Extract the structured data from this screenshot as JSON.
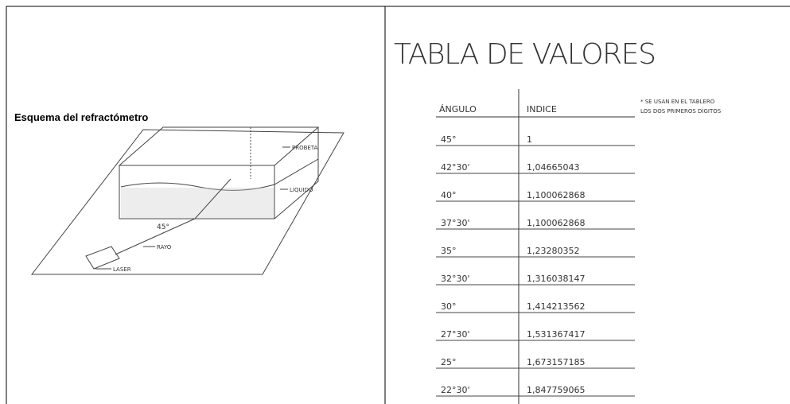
{
  "left": {
    "title": "Esquema del refractómetro",
    "diagram": {
      "probeta": "PROBETA",
      "liquido": "LIQUIDO",
      "angle": "45°",
      "rayo": "RAYO",
      "laser": "LASER"
    }
  },
  "right": {
    "title": "TABLA DE VALORES",
    "note": [
      "* SE USAN EN EL TABLERO",
      "LOS DOS PRIMEROS DÍGITOS"
    ],
    "table": {
      "header": [
        "ÁNGULO",
        "INDICE"
      ],
      "rows": [
        [
          "45°",
          "1"
        ],
        [
          "42°30'",
          "1,04665043"
        ],
        [
          "40°",
          "1,100062868"
        ],
        [
          "37°30'",
          "1,100062868"
        ],
        [
          "35°",
          "1,23280352"
        ],
        [
          "32°30'",
          "1,316038147"
        ],
        [
          "30°",
          "1,414213562"
        ],
        [
          "27°30'",
          "1,531367417"
        ],
        [
          "25°",
          "1,673157185"
        ],
        [
          "22°30'",
          "1,847759065"
        ]
      ]
    }
  }
}
